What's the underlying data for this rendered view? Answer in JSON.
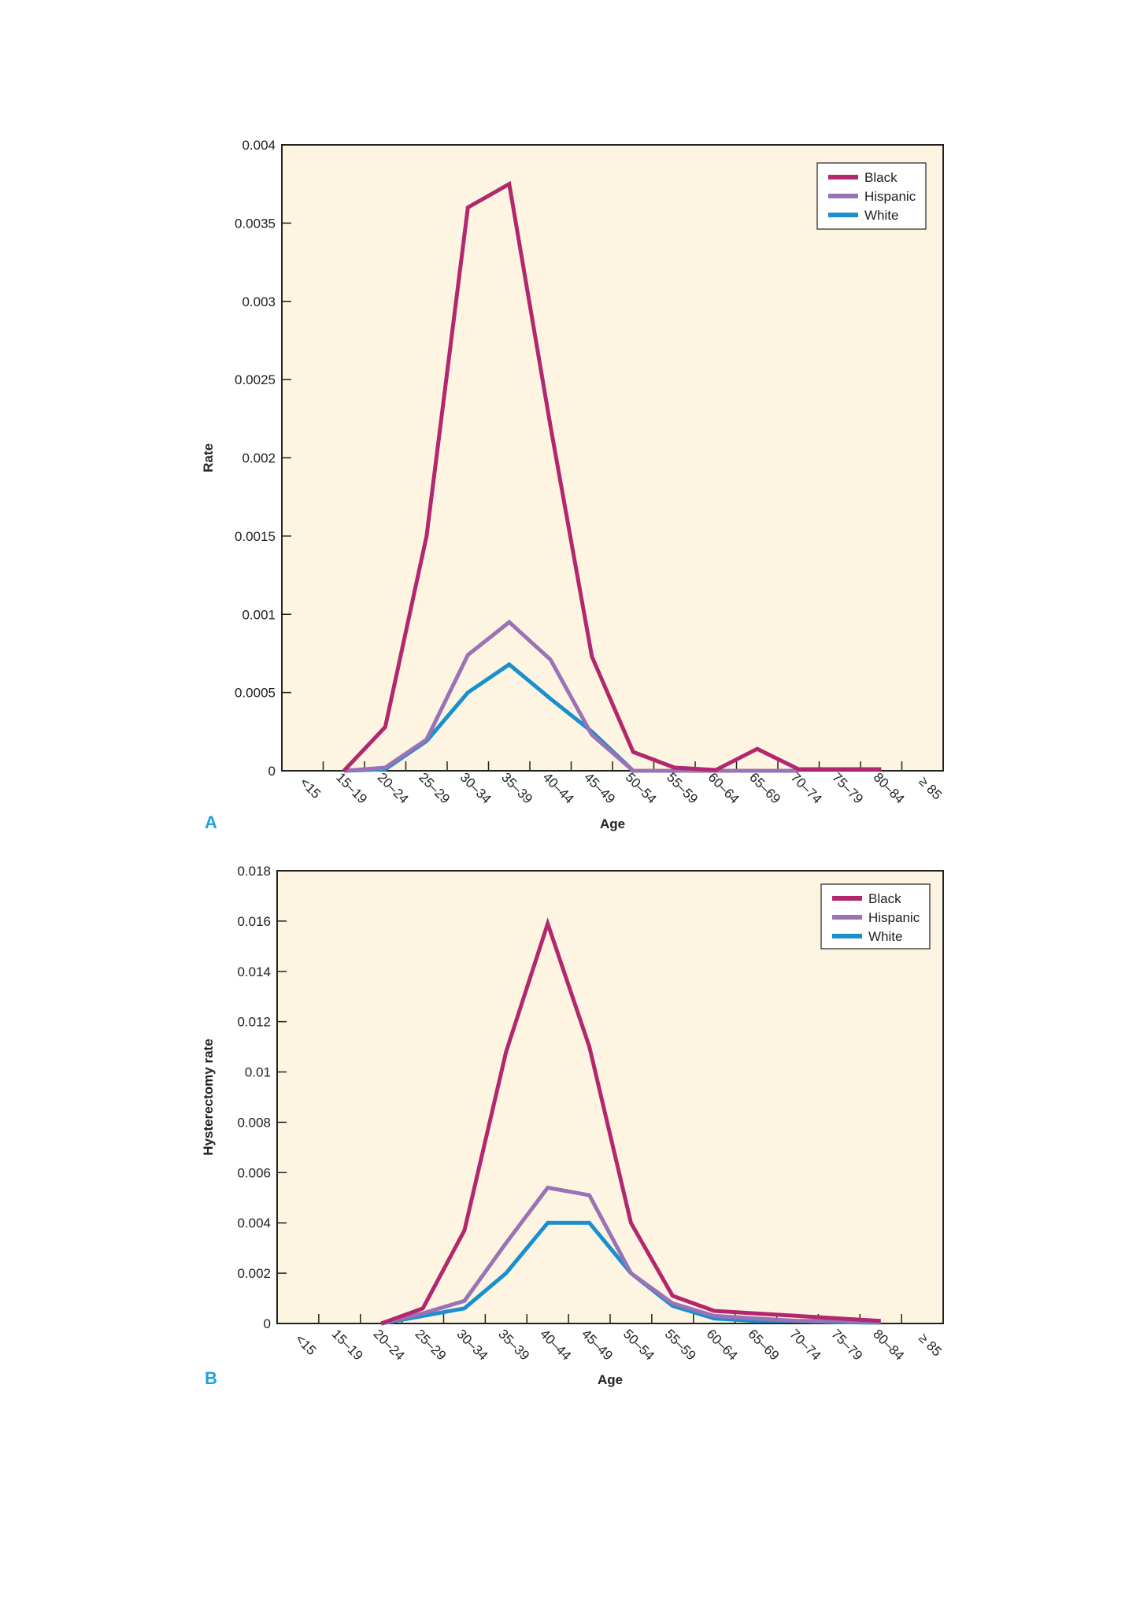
{
  "colors": {
    "plot_bg": "#fdf5e2",
    "axis": "#222222",
    "panel_letter": "#1aa3e0",
    "Black": "#b3276e",
    "Hispanic": "#9a72b6",
    "White": "#1a8fcf"
  },
  "chart_data": [
    {
      "type": "line",
      "panel": "A",
      "title": "",
      "xlabel": "Age",
      "ylabel": "Rate",
      "categories": [
        "<15",
        "15–19",
        "20–24",
        "25–29",
        "30–34",
        "35–39",
        "40–44",
        "45–49",
        "50–54",
        "55–59",
        "60–64",
        "65–69",
        "70–74",
        "75–79",
        "80–84",
        "≥ 85"
      ],
      "y_ticks": [
        "0",
        "0.0005",
        "0.001",
        "0.0015",
        "0.002",
        "0.0025",
        "0.003",
        "0.0035",
        "0.004"
      ],
      "ylim": [
        0,
        0.004
      ],
      "grid": false,
      "legend_position": "top-right",
      "series": [
        {
          "name": "Black",
          "values": [
            null,
            0,
            0.00028,
            0.0015,
            0.0036,
            0.00375,
            0.0022,
            0.00073,
            0.00012,
            2e-05,
            5e-06,
            0.00014,
            1e-05,
            1e-05,
            1e-05,
            null
          ]
        },
        {
          "name": "Hispanic",
          "values": [
            null,
            0,
            2e-05,
            0.0002,
            0.00074,
            0.00095,
            0.00071,
            0.00023,
            0,
            0,
            0,
            0,
            0,
            null,
            null,
            null
          ]
        },
        {
          "name": "White",
          "values": [
            null,
            0,
            1e-05,
            0.00019,
            0.0005,
            0.00068,
            0.00046,
            0.00025,
            0,
            0,
            0,
            0,
            0,
            null,
            null,
            null
          ]
        }
      ]
    },
    {
      "type": "line",
      "panel": "B",
      "title": "",
      "xlabel": "Age",
      "ylabel": "Hysterectomy rate",
      "categories": [
        "<15",
        "15–19",
        "20–24",
        "25–29",
        "30–34",
        "35–39",
        "40–44",
        "45–49",
        "50–54",
        "55–59",
        "60–64",
        "65–69",
        "70–74",
        "75–79",
        "80–84",
        "≥ 85"
      ],
      "y_ticks": [
        "0",
        "0.002",
        "0.004",
        "0.006",
        "0.008",
        "0.01",
        "0.012",
        "0.014",
        "0.016",
        "0.018"
      ],
      "ylim": [
        0,
        0.018
      ],
      "grid": false,
      "legend_position": "top-right",
      "series": [
        {
          "name": "Black",
          "values": [
            null,
            null,
            0,
            0.0006,
            0.0037,
            0.0108,
            0.0159,
            0.011,
            0.004,
            0.0011,
            0.0005,
            0.0004,
            0.0003,
            0.0002,
            0.0001,
            null
          ]
        },
        {
          "name": "Hispanic",
          "values": [
            null,
            null,
            0,
            0.0004,
            0.0009,
            0.0032,
            0.0054,
            0.0051,
            0.002,
            0.0008,
            0.0003,
            0.0002,
            0.0001,
            0.0001,
            5e-05,
            null
          ]
        },
        {
          "name": "White",
          "values": [
            null,
            null,
            0,
            0.0003,
            0.0006,
            0.002,
            0.004,
            0.004,
            0.002,
            0.0007,
            0.0002,
            0.0001,
            0.0001,
            5e-05,
            3e-05,
            null
          ]
        }
      ]
    }
  ]
}
